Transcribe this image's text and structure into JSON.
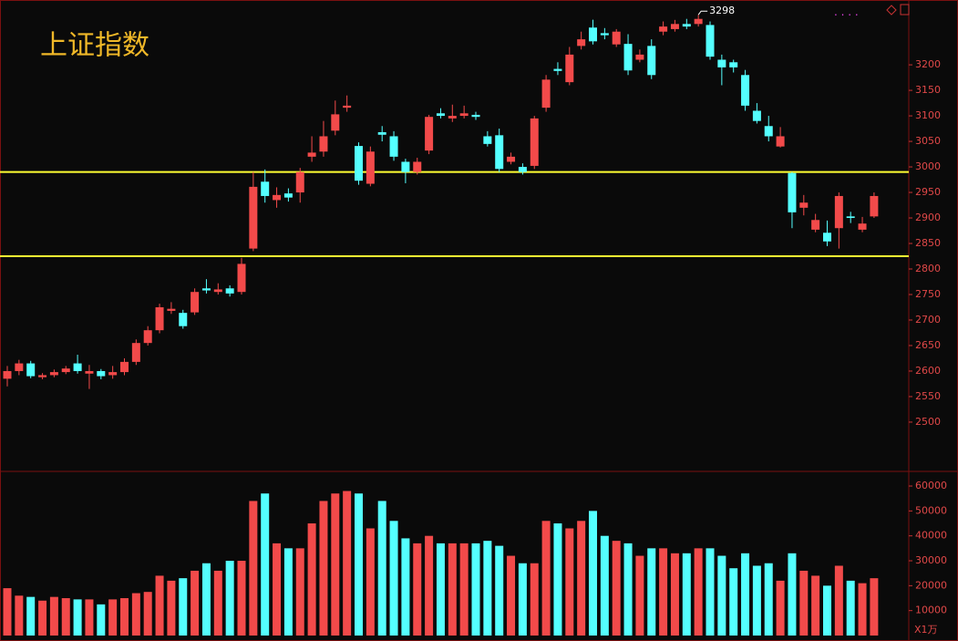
{
  "chart_data": [
    {
      "type": "candlestick",
      "title": "上证指数",
      "up_color": "#f24a4a",
      "down_color": "#54ffff",
      "open": [
        2585,
        2600,
        2615,
        2588,
        2592,
        2598,
        2615,
        2595,
        2600,
        2592,
        2598,
        2618,
        2655,
        2680,
        2718,
        2714,
        2715,
        2762,
        2755,
        2762,
        2755,
        2840,
        2971,
        2935,
        2948,
        2950,
        3020,
        3030,
        3071,
        3116,
        3041,
        2967,
        3068,
        3060,
        3010,
        2990,
        3032,
        3105,
        3095,
        3100,
        3102,
        3060,
        3062,
        3010,
        3000,
        3002,
        3116,
        3192,
        3166,
        3237,
        3273,
        3262,
        3240,
        3241,
        3210,
        3237,
        3265,
        3270,
        3280,
        3280,
        3278,
        3210,
        3205,
        3180,
        3110,
        3080,
        3040,
        2988,
        2920,
        2877,
        2871,
        2880,
        2903,
        2877,
        2903
      ],
      "close": [
        2600,
        2615,
        2590,
        2592,
        2598,
        2605,
        2600,
        2600,
        2590,
        2598,
        2618,
        2655,
        2680,
        2725,
        2722,
        2688,
        2755,
        2758,
        2760,
        2752,
        2810,
        2961,
        2943,
        2945,
        2940,
        2990,
        3028,
        3060,
        3103,
        3120,
        2973,
        3030,
        3063,
        3020,
        2990,
        3010,
        3098,
        3100,
        3100,
        3105,
        3098,
        3045,
        2996,
        3020,
        2990,
        3095,
        3171,
        3188,
        3220,
        3250,
        3246,
        3258,
        3265,
        3189,
        3220,
        3180,
        3275,
        3280,
        3275,
        3290,
        3216,
        3195,
        3195,
        3120,
        3090,
        3060,
        3060,
        2911,
        2930,
        2896,
        2854,
        2943,
        2900,
        2889,
        2943
      ],
      "high": [
        2610,
        2622,
        2620,
        2596,
        2603,
        2610,
        2632,
        2612,
        2604,
        2610,
        2625,
        2662,
        2688,
        2732,
        2735,
        2720,
        2762,
        2780,
        2772,
        2768,
        2822,
        2990,
        2995,
        2960,
        2958,
        2998,
        3060,
        3090,
        3130,
        3140,
        3048,
        3040,
        3080,
        3070,
        3016,
        3018,
        3102,
        3115,
        3122,
        3120,
        3108,
        3070,
        3075,
        3028,
        3007,
        3100,
        3180,
        3205,
        3235,
        3265,
        3288.45,
        3272,
        3270,
        3260,
        3230,
        3250,
        3285,
        3288,
        3290,
        3298,
        3285,
        3220,
        3210,
        3190,
        3125,
        3100,
        3078,
        2990,
        2945,
        2908,
        2895,
        2950,
        2912,
        2902,
        2950
      ],
      "low": [
        2570,
        2592,
        2586,
        2584,
        2588,
        2594,
        2595,
        2565,
        2584,
        2585,
        2592,
        2612,
        2650,
        2674,
        2712,
        2683,
        2710,
        2752,
        2750,
        2746,
        2750,
        2835,
        2930,
        2920,
        2932,
        2930,
        3010,
        3020,
        3062,
        3108,
        2965,
        2962,
        3050,
        3012,
        2968,
        2985,
        3025,
        3095,
        3088,
        3095,
        3092,
        3040,
        2990,
        3005,
        2985,
        2996,
        3108,
        3180,
        3160,
        3230,
        3240,
        3250,
        3235,
        3180,
        3205,
        3172,
        3258,
        3265,
        3270,
        3275,
        3210,
        3160,
        3185,
        3110,
        3085,
        3050,
        3038,
        2880,
        2905,
        2872,
        2845,
        2840,
        2890,
        2872,
        2900
      ],
      "hlines": [
        2990,
        2825
      ],
      "hline_color": "#ffff33",
      "ylim": [
        2407,
        3327
      ],
      "yticks": [
        2500,
        2550,
        2600,
        2650,
        2700,
        2750,
        2800,
        2850,
        2900,
        2950,
        3000,
        3050,
        3100,
        3150,
        3200
      ]
    },
    {
      "type": "bar",
      "y_label": "X1万",
      "values": [
        19000,
        16000,
        15500,
        14000,
        15500,
        15000,
        14500,
        14500,
        12500,
        14500,
        15000,
        17000,
        17500,
        24000,
        22000,
        23000,
        26000,
        29000,
        26000,
        30000,
        30000,
        54000,
        57000,
        37000,
        35000,
        35000,
        45000,
        54000,
        57000,
        58000,
        57000,
        43000,
        54000,
        46000,
        39000,
        37000,
        40000,
        37000,
        37000,
        37000,
        37000,
        38000,
        36000,
        32000,
        29000,
        29000,
        46000,
        45000,
        43000,
        46000,
        50000,
        40000,
        38000,
        37000,
        32000,
        35000,
        35000,
        33000,
        33000,
        35000,
        35000,
        32000,
        27000,
        33000,
        28000,
        29000,
        22000,
        33000,
        26000,
        24000,
        20000,
        28000,
        22000,
        21000,
        23000
      ],
      "ylim": [
        0,
        65500
      ],
      "yticks": [
        10000,
        20000,
        30000,
        40000,
        50000,
        60000
      ]
    }
  ]
}
